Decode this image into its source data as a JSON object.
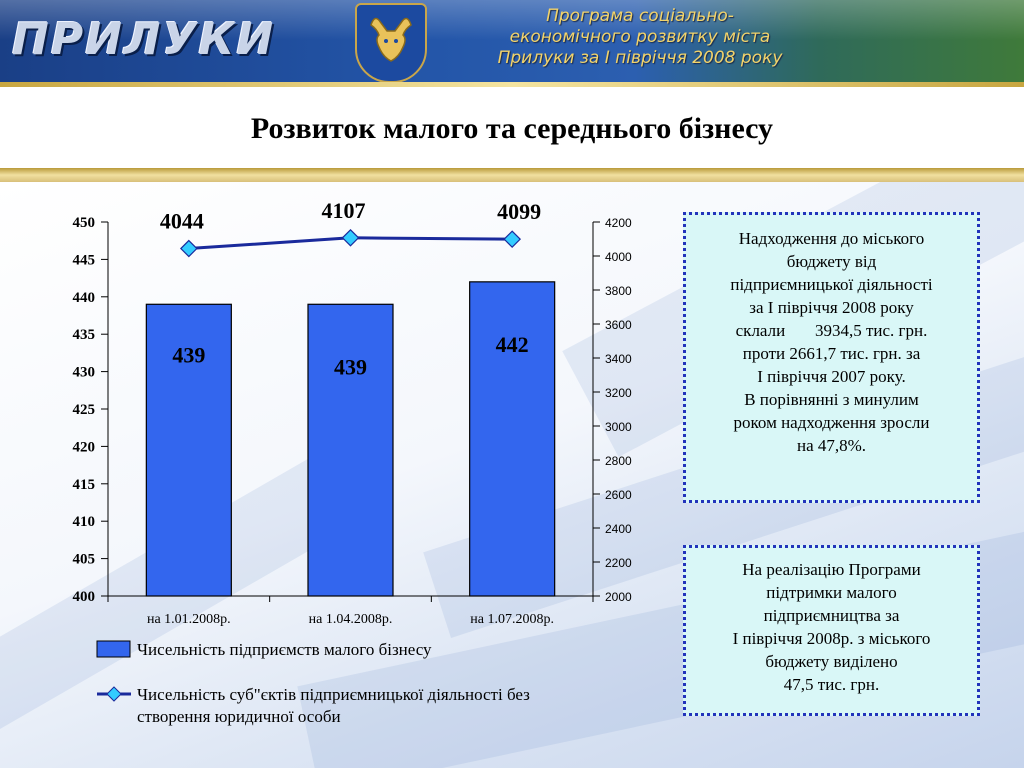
{
  "header": {
    "logo_text": "ПРИЛУКИ",
    "program_lines": [
      "Програма соціально-",
      "економічного розвитку міста",
      "Прилуки за І півріччя 2008 року"
    ]
  },
  "page_title": "Розвиток малого та середнього бізнесу",
  "chart_data": {
    "type": "bar",
    "categories": [
      "на 1.01.2008р.",
      "на 1.04.2008р.",
      "на 1.07.2008р."
    ],
    "series": [
      {
        "name": "Чисельність підприємств малого бізнесу",
        "type": "bar",
        "axis": "left",
        "values": [
          439,
          439,
          442
        ],
        "labels": [
          "439",
          "439",
          "442"
        ],
        "color": "#3366ee"
      },
      {
        "name": "Чисельність суб\"єктів підприємницької діяльності без створення юридичної особи",
        "type": "line",
        "axis": "right",
        "values": [
          4044,
          4107,
          4099
        ],
        "labels": [
          "4044",
          "4107",
          "4099"
        ],
        "color": "#1a2a9c",
        "marker_color": "#33ccff"
      }
    ],
    "ylim_left": [
      400,
      450
    ],
    "yticks_left": [
      "400",
      "405",
      "410",
      "415",
      "420",
      "425",
      "430",
      "435",
      "440",
      "445",
      "450"
    ],
    "ylim_right": [
      2000,
      4200
    ],
    "yticks_right": [
      "2000",
      "2200",
      "2400",
      "2600",
      "2800",
      "3000",
      "3200",
      "3400",
      "3600",
      "3800",
      "4000",
      "4200"
    ],
    "legend_lines": [
      [
        "Чисельність підприємств малого бізнесу"
      ],
      [
        "Чисельність суб\"єктів підприємницької діяльності без",
        "створення юридичної особи"
      ]
    ],
    "legend_position": "bottom",
    "grid": false
  },
  "info_box_1": {
    "lines": [
      "Надходження до  міського",
      "бюджету від",
      "підприємницької діяльності",
      "за І півріччя 2008 року",
      "склали       3934,5 тис. грн.",
      "проти 2661,7 тис. грн. за",
      "І півріччя 2007 року.",
      "В порівнянні з минулим",
      "роком надходження зросли",
      "на 47,8%."
    ]
  },
  "info_box_2": {
    "lines": [
      "На реалізацію Програми",
      "підтримки малого",
      "підприємництва за",
      "І півріччя 2008р. з міського",
      "бюджету виділено",
      "47,5 тис. грн."
    ]
  },
  "colors": {
    "banner_blue": "#2355a8",
    "bar_fill": "#3366ee",
    "line": "#1a2a9c",
    "marker": "#33ccff",
    "info_bg": "#d9f7f7",
    "info_border": "#2233bb",
    "gold": "#c8a640"
  }
}
